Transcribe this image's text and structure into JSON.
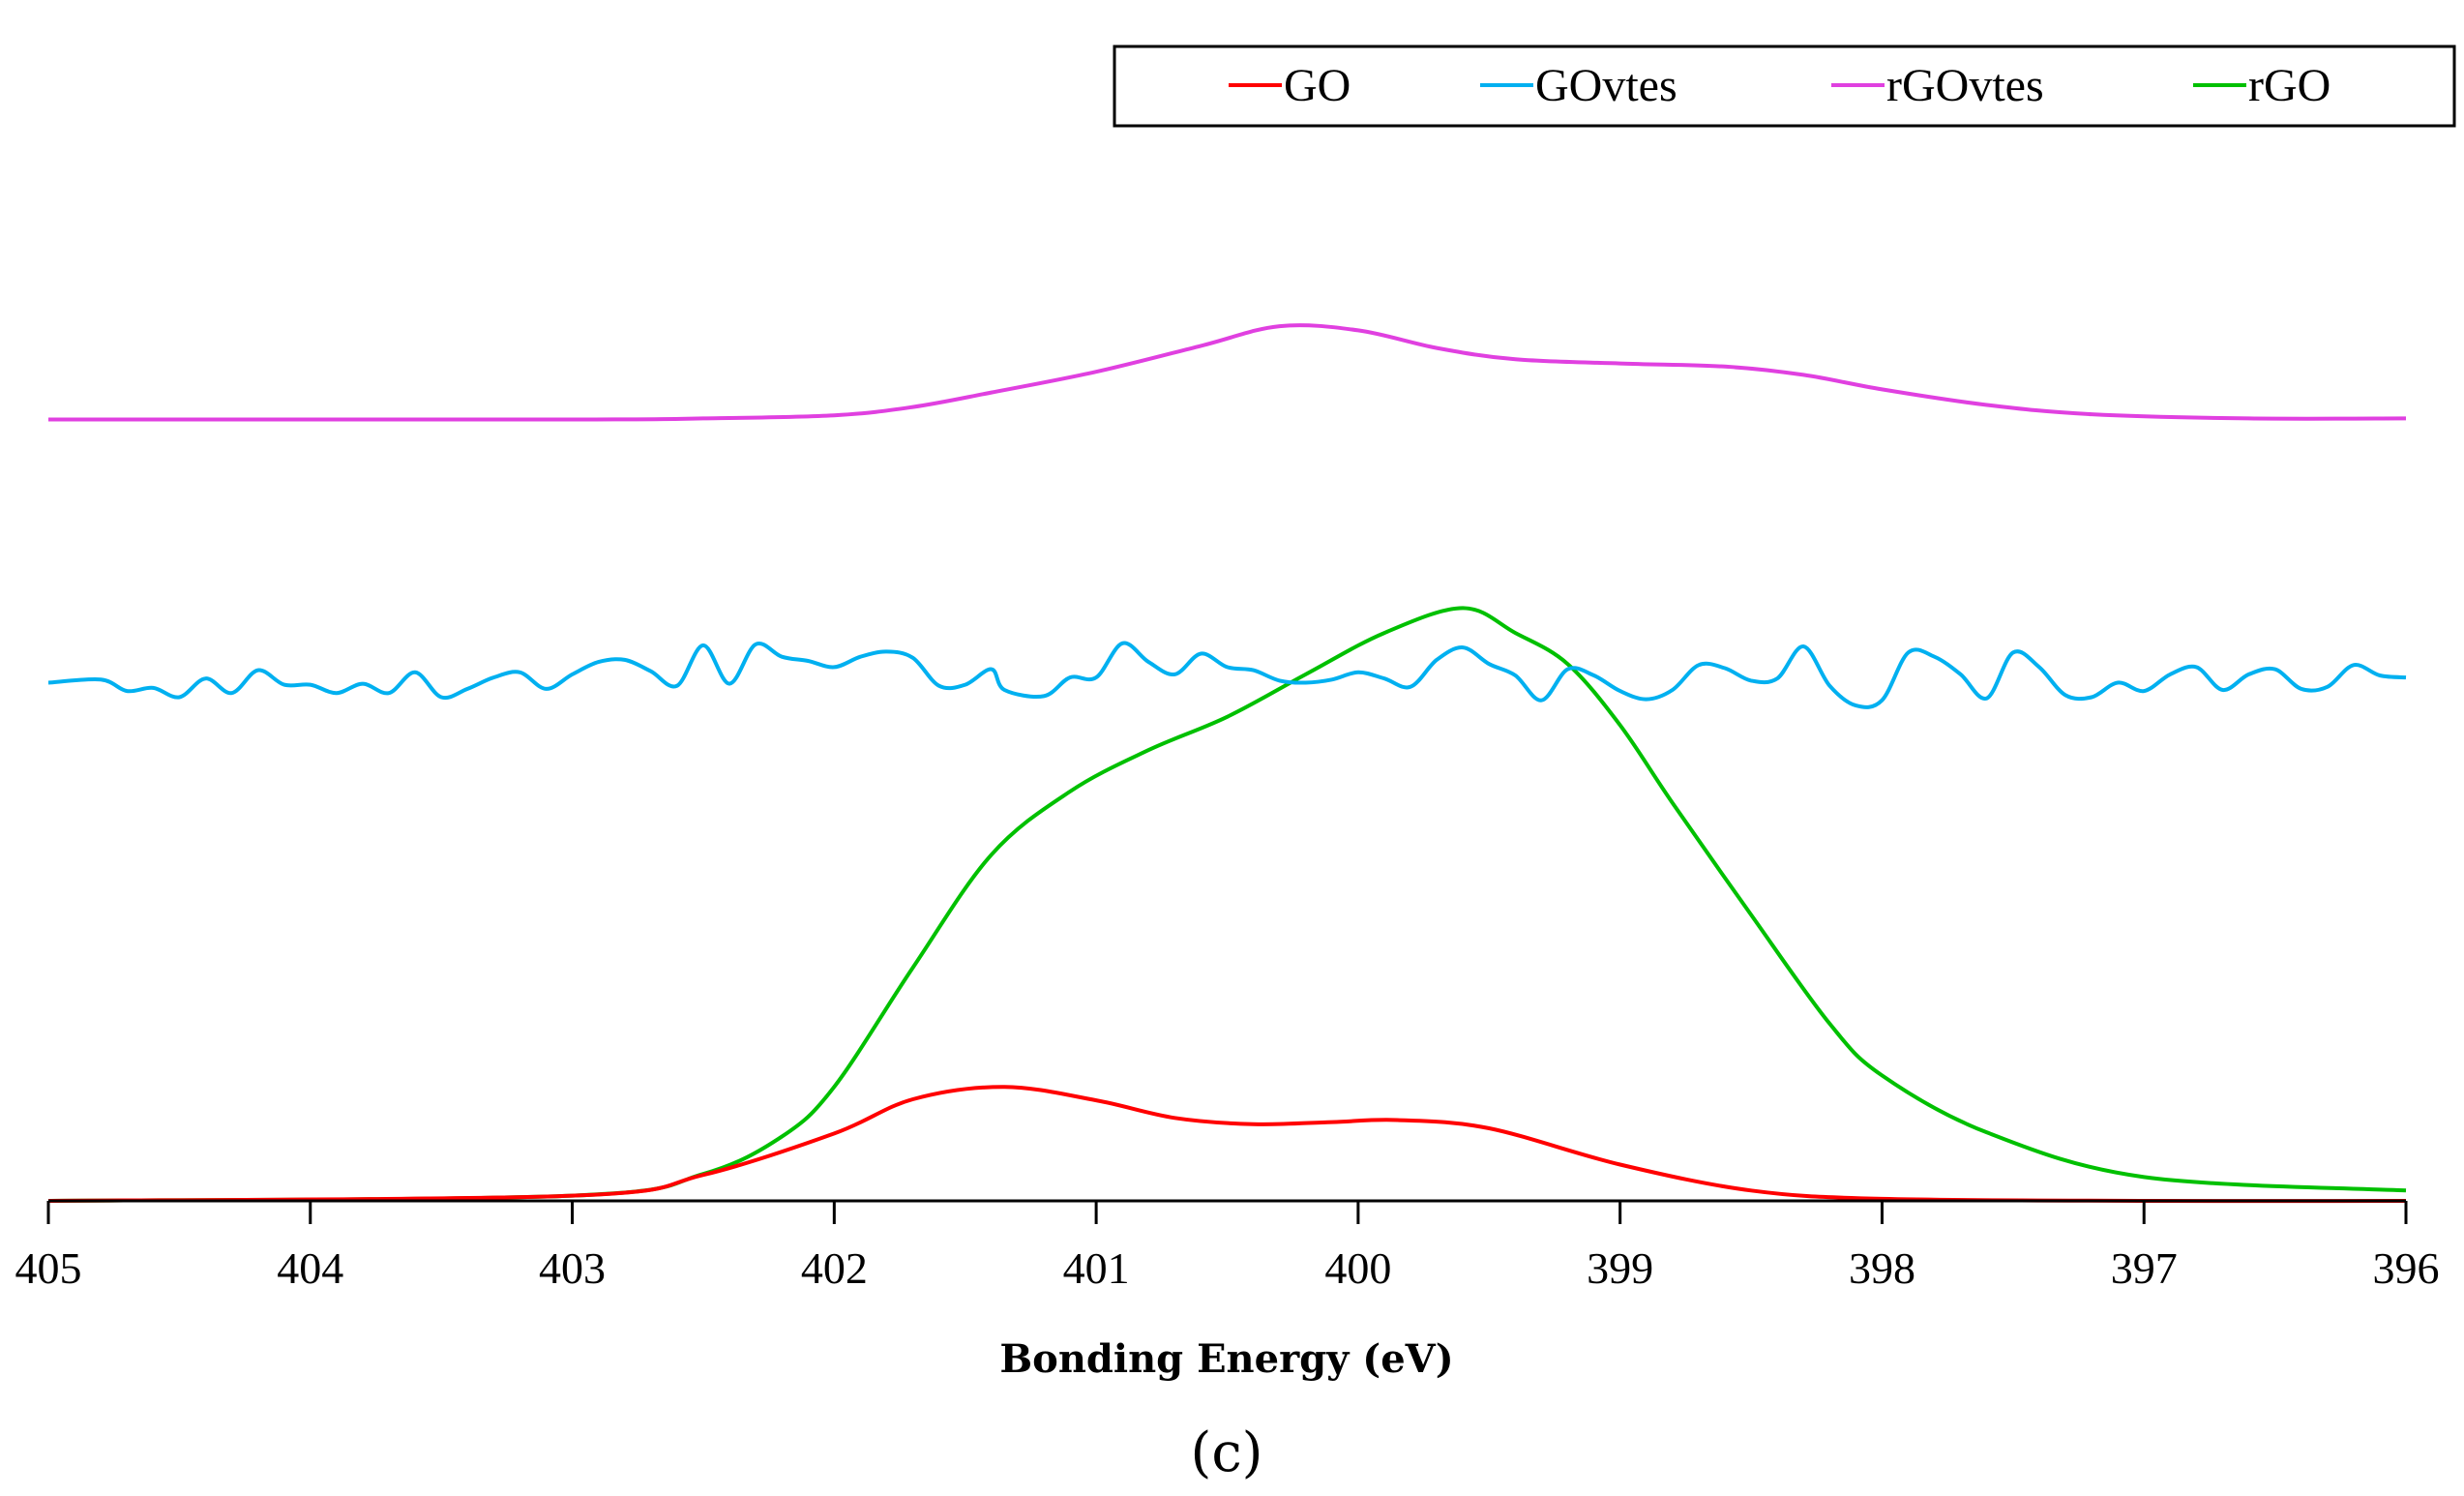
{
  "chart_data": {
    "type": "line",
    "title": "",
    "caption": "(c)",
    "xlabel": "Bonding Energy (eV)",
    "ylabel": "",
    "xlim": [
      405,
      396
    ],
    "x_reversed": true,
    "x_ticks": [
      405,
      404,
      403,
      402,
      401,
      400,
      399,
      398,
      397,
      396
    ],
    "ylim": [
      0,
      1
    ],
    "y_axis_shown": false,
    "grid": false,
    "legend": {
      "placement": "top-right",
      "entries": [
        "GO",
        "GOvtes",
        "rGOvtes",
        "rGO"
      ]
    },
    "series": [
      {
        "name": "GO",
        "color": "#ff0000",
        "x": [
          405.0,
          403.0,
          402.5,
          402.0,
          401.7,
          401.35,
          401.0,
          400.7,
          400.4,
          400.1,
          399.85,
          399.5,
          399.0,
          398.5,
          398.0,
          397.0,
          396.0
        ],
        "y": [
          0.0,
          0.005,
          0.025,
          0.065,
          0.098,
          0.11,
          0.097,
          0.08,
          0.074,
          0.076,
          0.078,
          0.07,
          0.035,
          0.01,
          0.002,
          0.0,
          0.0
        ]
      },
      {
        "name": "GOvtes",
        "color": "#00b0f0",
        "x": [
          405.0,
          404.8,
          404.7,
          404.6,
          404.5,
          404.4,
          404.3,
          404.2,
          404.1,
          404.0,
          403.9,
          403.8,
          403.7,
          403.6,
          403.5,
          403.4,
          403.3,
          403.2,
          403.1,
          403.0,
          402.9,
          402.8,
          402.7,
          402.6,
          402.5,
          402.4,
          402.3,
          402.2,
          402.1,
          402.0,
          401.9,
          401.8,
          401.7,
          401.6,
          401.5,
          401.4,
          401.35,
          401.2,
          401.1,
          401.0,
          400.9,
          400.8,
          400.7,
          400.6,
          400.5,
          400.4,
          400.3,
          400.2,
          400.1,
          400.0,
          399.9,
          399.8,
          399.7,
          399.6,
          399.5,
          399.4,
          399.3,
          399.2,
          399.1,
          399.0,
          398.9,
          398.8,
          398.7,
          398.6,
          398.5,
          398.4,
          398.3,
          398.2,
          398.1,
          398.0,
          397.9,
          397.8,
          397.7,
          397.6,
          397.5,
          397.4,
          397.3,
          397.2,
          397.1,
          397.0,
          396.9,
          396.8,
          396.7,
          396.6,
          396.5,
          396.4,
          396.3,
          396.2,
          396.1,
          396.0
        ],
        "y": [
          0.5,
          0.503,
          0.492,
          0.495,
          0.486,
          0.504,
          0.49,
          0.512,
          0.498,
          0.498,
          0.49,
          0.499,
          0.49,
          0.51,
          0.486,
          0.494,
          0.505,
          0.51,
          0.494,
          0.508,
          0.52,
          0.522,
          0.511,
          0.497,
          0.536,
          0.499,
          0.537,
          0.525,
          0.521,
          0.515,
          0.525,
          0.53,
          0.524,
          0.497,
          0.498,
          0.513,
          0.493,
          0.487,
          0.505,
          0.505,
          0.538,
          0.52,
          0.508,
          0.528,
          0.515,
          0.512,
          0.502,
          0.5,
          0.503,
          0.51,
          0.504,
          0.496,
          0.522,
          0.534,
          0.518,
          0.507,
          0.483,
          0.513,
          0.507,
          0.492,
          0.484,
          0.493,
          0.517,
          0.514,
          0.502,
          0.504,
          0.535,
          0.497,
          0.478,
          0.483,
          0.529,
          0.525,
          0.508,
          0.485,
          0.529,
          0.515,
          0.488,
          0.486,
          0.5,
          0.492,
          0.508,
          0.515,
          0.493,
          0.508,
          0.513,
          0.494,
          0.496,
          0.517,
          0.507,
          0.505
        ]
      },
      {
        "name": "rGOvtes",
        "color": "#e040e0",
        "x": [
          405.0,
          403.0,
          402.5,
          402.0,
          401.7,
          401.4,
          401.0,
          400.6,
          400.3,
          400.0,
          399.7,
          399.4,
          399.0,
          398.6,
          398.3,
          398.0,
          397.6,
          397.2,
          396.6,
          396.0
        ],
        "y": [
          0.754,
          0.754,
          0.755,
          0.758,
          0.766,
          0.78,
          0.8,
          0.825,
          0.844,
          0.84,
          0.823,
          0.812,
          0.808,
          0.805,
          0.797,
          0.783,
          0.768,
          0.759,
          0.755,
          0.755
        ]
      },
      {
        "name": "rGO",
        "color": "#00c000",
        "x": [
          405.0,
          403.0,
          402.5,
          402.2,
          402.0,
          401.7,
          401.4,
          401.1,
          400.8,
          400.5,
          400.2,
          399.9,
          399.6,
          399.4,
          399.2,
          399.0,
          398.8,
          398.5,
          398.2,
          398.0,
          397.6,
          397.0,
          396.0
        ],
        "y": [
          0.0,
          0.005,
          0.026,
          0.062,
          0.11,
          0.225,
          0.334,
          0.395,
          0.435,
          0.467,
          0.508,
          0.548,
          0.572,
          0.548,
          0.518,
          0.459,
          0.384,
          0.276,
          0.171,
          0.121,
          0.066,
          0.023,
          0.01
        ]
      }
    ]
  }
}
